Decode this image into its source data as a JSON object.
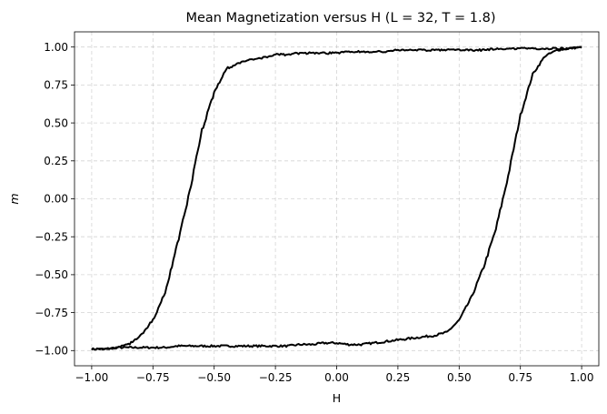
{
  "chart_data": {
    "type": "line",
    "title": "Mean Magnetization versus H (L = 32, T = 1.8)",
    "xlabel": "H",
    "ylabel": "m",
    "xlim": [
      -1.07,
      1.07
    ],
    "ylim": [
      -1.1,
      1.1
    ],
    "x_ticks": [
      -1.0,
      -0.75,
      -0.5,
      -0.25,
      0.0,
      0.25,
      0.5,
      0.75,
      1.0
    ],
    "y_ticks": [
      -1.0,
      -0.75,
      -0.5,
      -0.25,
      0.0,
      0.25,
      0.5,
      0.75,
      1.0
    ],
    "x_tick_labels": [
      "−1.00",
      "−0.75",
      "−0.50",
      "−0.25",
      "0.00",
      "0.25",
      "0.50",
      "0.75",
      "1.00"
    ],
    "y_tick_labels": [
      "−1.00",
      "−0.75",
      "−0.50",
      "−0.25",
      "0.00",
      "0.25",
      "0.50",
      "0.75",
      "1.00"
    ],
    "grid": true,
    "line_color": "#000000",
    "series": [
      {
        "x": [
          -1.0,
          -0.95,
          -0.9,
          -0.85,
          -0.8,
          -0.75,
          -0.7,
          -0.65,
          -0.6,
          -0.55,
          -0.5,
          -0.45,
          -0.4,
          -0.35,
          -0.3,
          -0.25,
          -0.2,
          -0.15,
          -0.1,
          -0.05,
          0.0,
          0.05,
          0.1,
          0.15,
          0.2,
          0.25,
          0.3,
          0.35,
          0.4,
          0.45,
          0.5,
          0.55,
          0.6,
          0.65,
          0.7,
          0.75,
          0.8,
          0.85,
          0.9,
          0.95,
          1.0
        ],
        "y": [
          -0.99,
          -0.99,
          -0.98,
          -0.98,
          -0.98,
          -0.98,
          -0.98,
          -0.97,
          -0.97,
          -0.97,
          -0.97,
          -0.97,
          -0.97,
          -0.97,
          -0.97,
          -0.97,
          -0.97,
          -0.96,
          -0.96,
          -0.95,
          -0.95,
          -0.96,
          -0.96,
          -0.95,
          -0.94,
          -0.93,
          -0.92,
          -0.91,
          -0.9,
          -0.88,
          -0.8,
          -0.65,
          -0.45,
          -0.2,
          0.15,
          0.55,
          0.82,
          0.94,
          0.98,
          0.99,
          1.0
        ]
      },
      {
        "x": [
          1.0,
          0.95,
          0.9,
          0.85,
          0.8,
          0.75,
          0.7,
          0.65,
          0.6,
          0.55,
          0.5,
          0.45,
          0.4,
          0.35,
          0.3,
          0.25,
          0.2,
          0.15,
          0.1,
          0.05,
          0.0,
          -0.05,
          -0.1,
          -0.15,
          -0.2,
          -0.25,
          -0.3,
          -0.35,
          -0.4,
          -0.45,
          -0.5,
          -0.55,
          -0.6,
          -0.65,
          -0.7,
          -0.75,
          -0.8,
          -0.85,
          -0.9,
          -0.95,
          -1.0
        ],
        "y": [
          1.0,
          0.99,
          0.99,
          0.99,
          0.99,
          0.99,
          0.99,
          0.99,
          0.98,
          0.98,
          0.98,
          0.98,
          0.98,
          0.98,
          0.98,
          0.98,
          0.97,
          0.97,
          0.97,
          0.97,
          0.96,
          0.96,
          0.96,
          0.96,
          0.95,
          0.95,
          0.93,
          0.92,
          0.89,
          0.86,
          0.7,
          0.45,
          0.05,
          -0.3,
          -0.62,
          -0.8,
          -0.9,
          -0.96,
          -0.98,
          -0.99,
          -0.99
        ]
      }
    ]
  }
}
